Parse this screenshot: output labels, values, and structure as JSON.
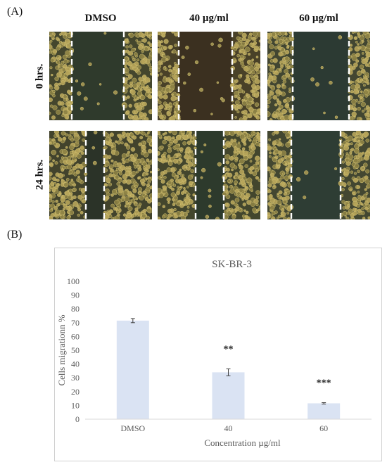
{
  "panel_a": {
    "label": "(A)",
    "columns": [
      "DMSO",
      "40 µg/ml",
      "60 µg/ml"
    ],
    "rows": [
      "0 hrs.",
      "24 hrs."
    ]
  },
  "panel_b": {
    "label": "(B)"
  },
  "colors": {
    "bar": "#dae3f3",
    "axis": "#d9d9d9",
    "text": "#595959",
    "error": "#404040"
  },
  "chart_data": {
    "type": "bar",
    "title": "SK-BR-3",
    "categories": [
      "DMSO",
      "40",
      "60"
    ],
    "values": [
      71.5,
      34,
      11.5
    ],
    "errors": [
      1.5,
      2.5,
      0.5
    ],
    "significance": [
      "",
      "**",
      "***"
    ],
    "xlabel": "Concentration µg/ml",
    "ylabel": "Cells migrationn %",
    "ylim": [
      0,
      100
    ],
    "yticks": [
      0,
      10,
      20,
      30,
      40,
      50,
      60,
      70,
      80,
      90,
      100
    ],
    "grid": false
  }
}
